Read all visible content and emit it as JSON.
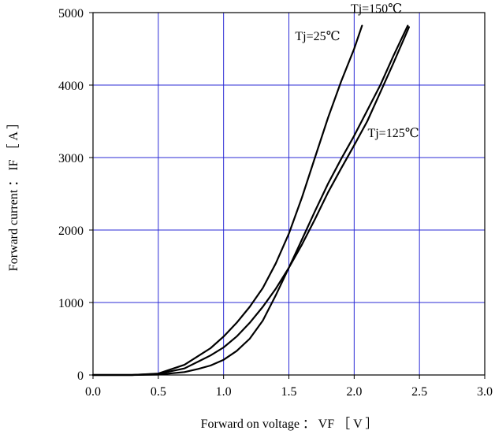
{
  "chart_data": {
    "type": "line",
    "title": "",
    "xlabel": "Forward on voltage ： VF ［ V ］",
    "ylabel": "Forward current ： IF ［ A ］",
    "xlim": [
      0,
      3
    ],
    "ylim": [
      0,
      5000
    ],
    "x_ticks": [
      "0.0",
      "0.5",
      "1.0",
      "1.5",
      "2.0",
      "2.5",
      "3.0"
    ],
    "y_ticks": [
      "0",
      "1000",
      "2000",
      "3000",
      "4000",
      "5000"
    ],
    "grid": true,
    "grid_color": "#2b2bd6",
    "line_color": "#000000",
    "series": [
      {
        "name": "Tj=25℃",
        "x": [
          0.0,
          0.3,
          0.5,
          0.7,
          0.9,
          1.0,
          1.1,
          1.2,
          1.3,
          1.4,
          1.5,
          1.6,
          1.7,
          1.8,
          1.9,
          2.0,
          2.06
        ],
        "y": [
          0,
          0,
          20,
          140,
          370,
          530,
          720,
          940,
          1200,
          1540,
          1950,
          2450,
          3000,
          3550,
          4050,
          4500,
          4820
        ]
      },
      {
        "name": "Tj=125℃",
        "x": [
          0.0,
          0.3,
          0.5,
          0.7,
          0.9,
          1.0,
          1.1,
          1.2,
          1.3,
          1.4,
          1.5,
          1.6,
          1.7,
          1.8,
          1.9,
          2.0,
          2.1,
          2.2,
          2.3,
          2.42
        ],
        "y": [
          0,
          0,
          15,
          90,
          270,
          380,
          530,
          720,
          940,
          1190,
          1480,
          1800,
          2150,
          2520,
          2850,
          3170,
          3500,
          3900,
          4300,
          4800
        ]
      },
      {
        "name": "Tj=150℃",
        "x": [
          0.0,
          0.3,
          0.5,
          0.7,
          0.8,
          0.9,
          1.0,
          1.1,
          1.2,
          1.3,
          1.4,
          1.5,
          1.6,
          1.7,
          1.8,
          1.9,
          2.0,
          2.1,
          2.2,
          2.3,
          2.41
        ],
        "y": [
          0,
          0,
          5,
          40,
          80,
          130,
          210,
          330,
          500,
          750,
          1100,
          1480,
          1870,
          2260,
          2640,
          2980,
          3300,
          3650,
          4000,
          4400,
          4820
        ]
      }
    ],
    "labels": [
      {
        "text": "Tj=25℃",
        "series": "Tj=25℃",
        "at": [
          1.72,
          4620
        ]
      },
      {
        "text": "Tj=150℃",
        "series": "Tj=150℃",
        "at": [
          2.17,
          5000
        ]
      },
      {
        "text": "Tj=125℃",
        "series": "Tj=125℃",
        "at": [
          2.3,
          3280
        ]
      }
    ]
  }
}
